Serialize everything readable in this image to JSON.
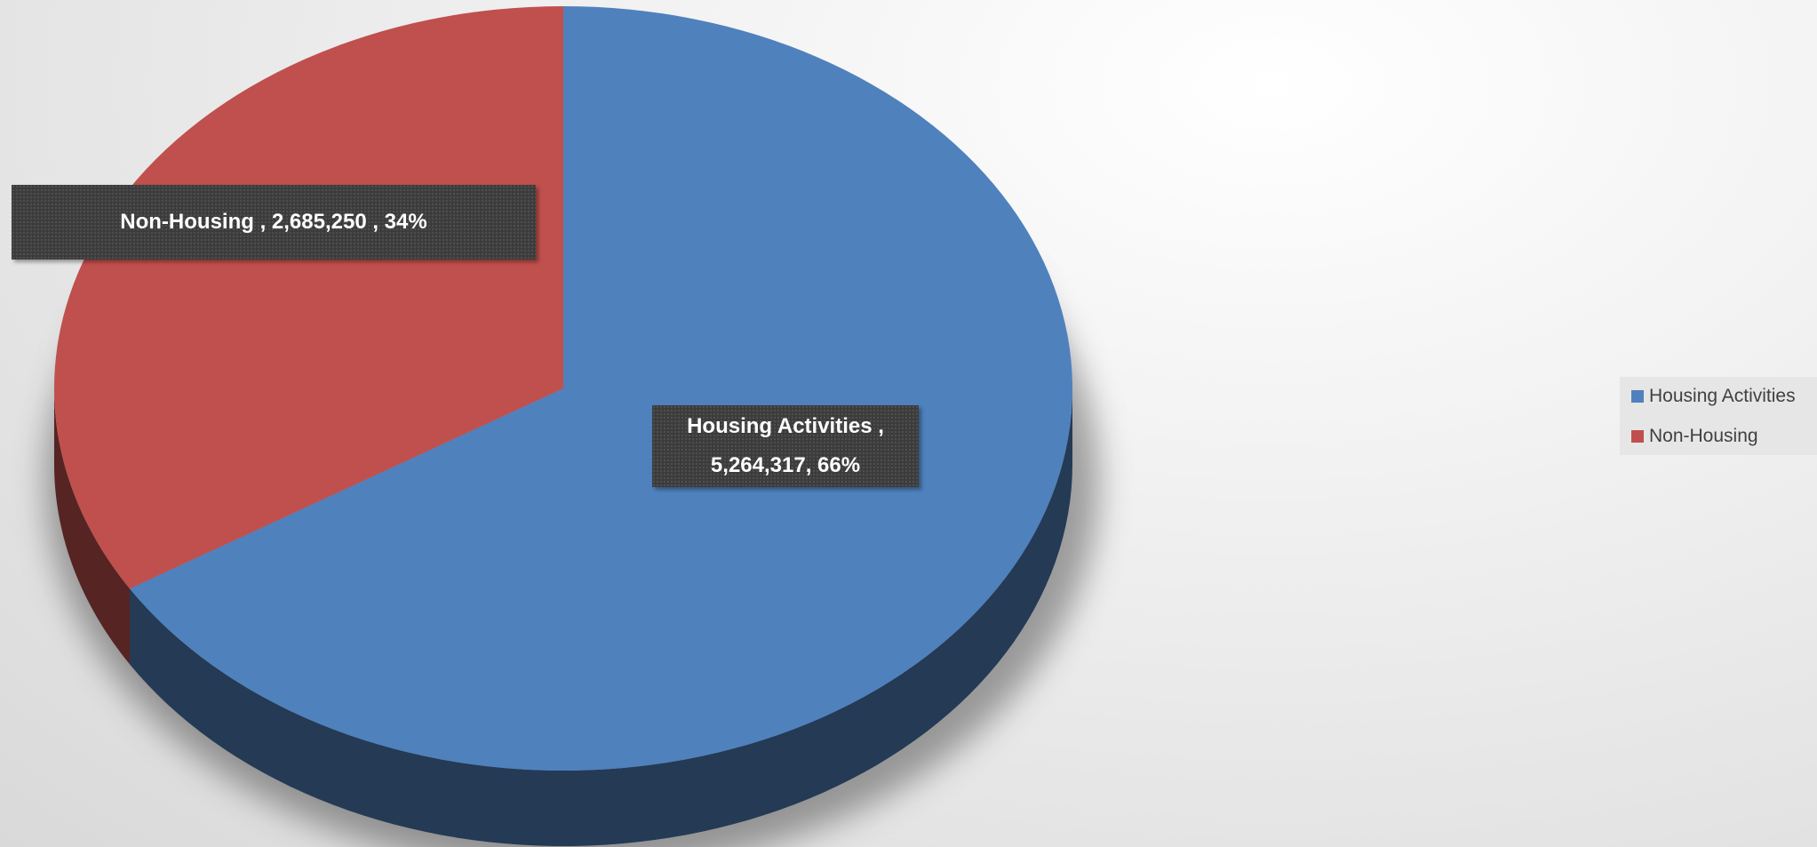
{
  "chart_data": {
    "type": "pie",
    "categories": [
      "Housing Activities",
      "Non-Housing"
    ],
    "values": [
      5264317,
      2685250
    ],
    "value_labels": [
      "Housing Activities , 5,264,317, 66%",
      "Non-Housing , 2,685,250 , 34%"
    ],
    "colors": [
      "#4f81bd",
      "#c0504d"
    ],
    "legend": "right"
  }
}
